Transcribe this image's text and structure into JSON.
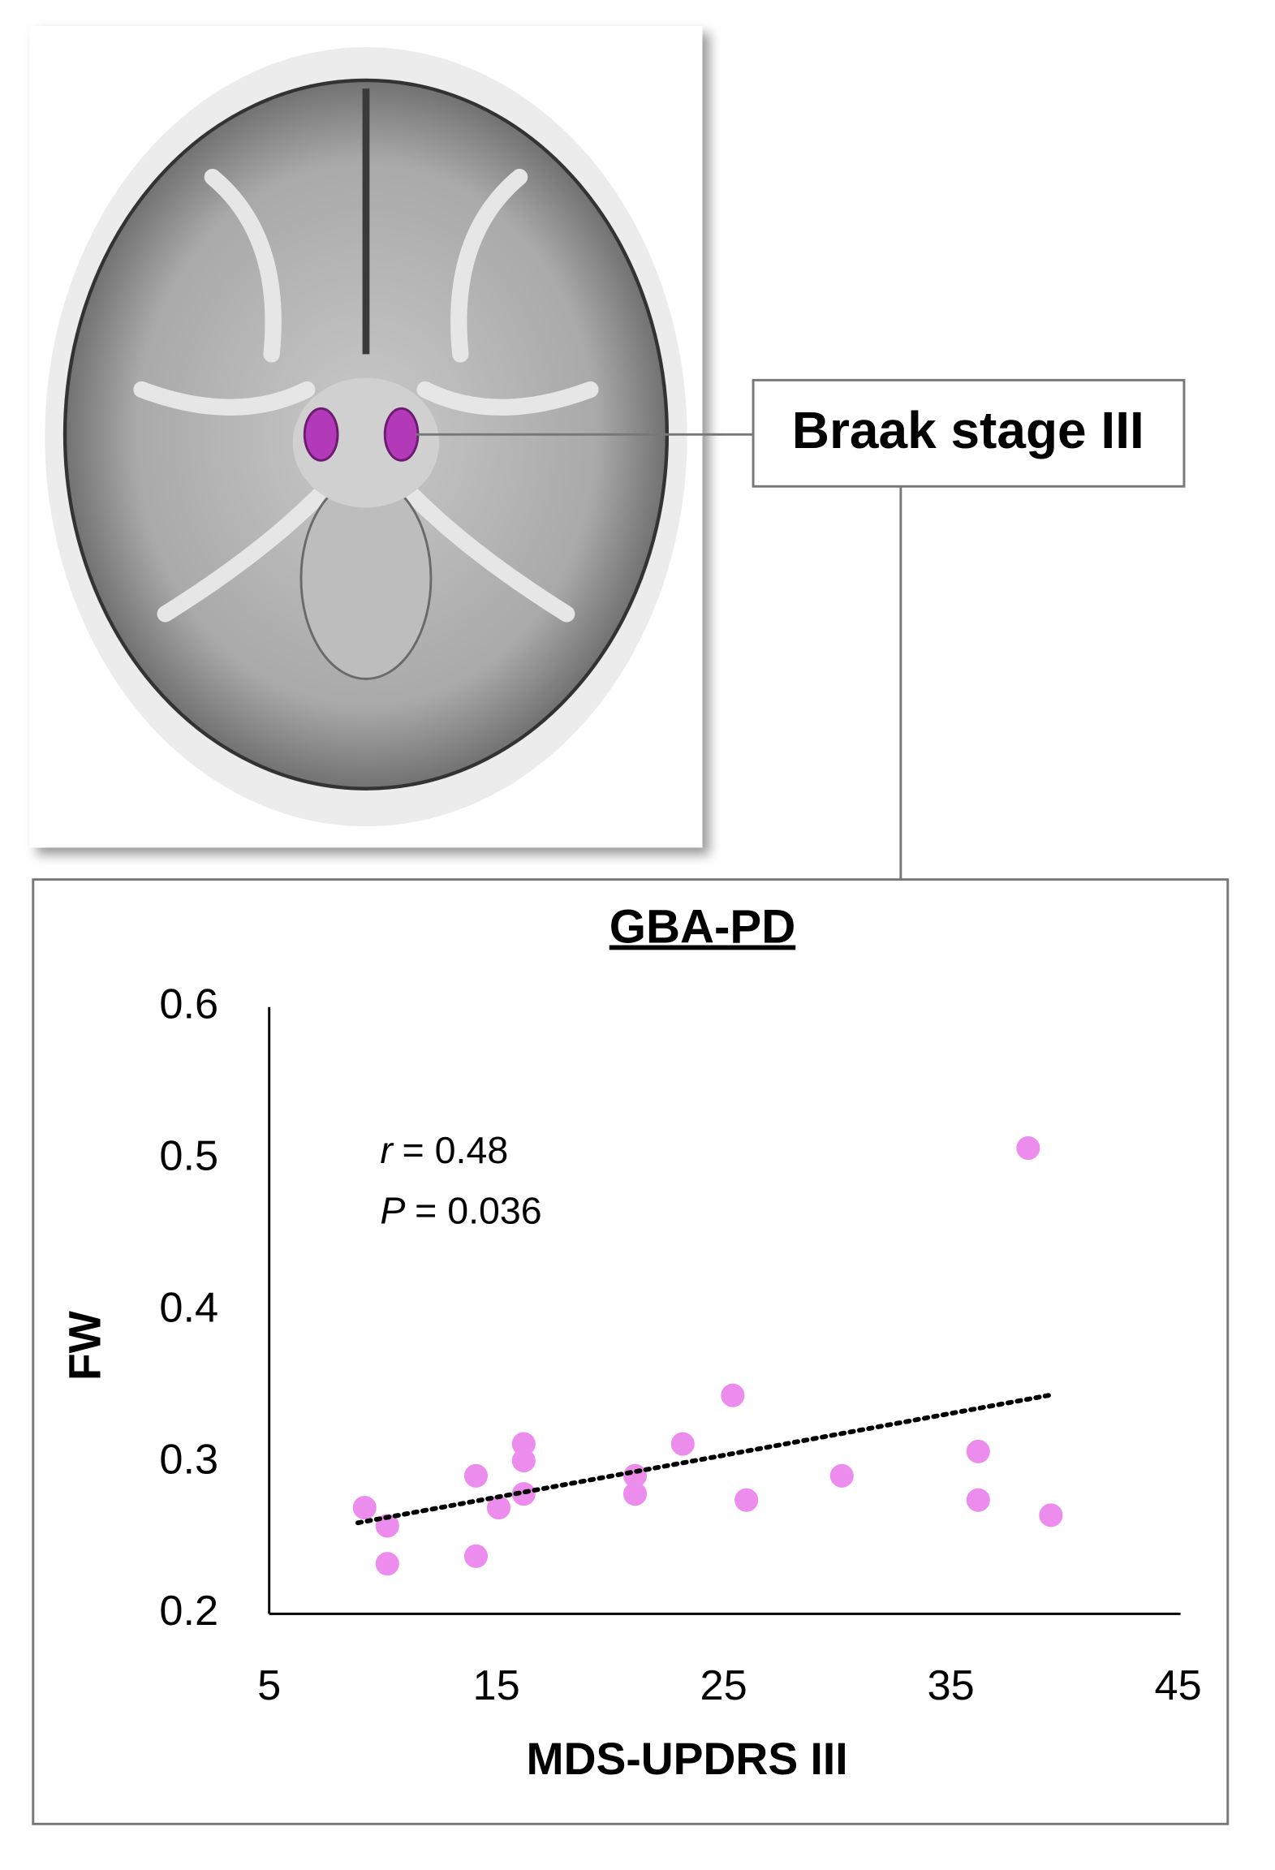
{
  "region_label": "Braak stage III",
  "chart_data": {
    "type": "scatter",
    "title": "GBA-PD",
    "x_label": "MDS-UPDRS III",
    "y_label": "FW",
    "annotations": [
      {
        "symbol": "r",
        "text": "= 0.48"
      },
      {
        "symbol": "P",
        "text": "= 0.036"
      }
    ],
    "color": "#ec8cec",
    "x": [
      9.2,
      10.2,
      10.2,
      14.1,
      14.1,
      15.1,
      16.2,
      16.2,
      16.2,
      21.1,
      21.1,
      23.2,
      25.4,
      26.0,
      30.2,
      36.2,
      36.2,
      38.4,
      39.4
    ],
    "values": [
      0.27,
      0.258,
      0.233,
      0.291,
      0.238,
      0.27,
      0.312,
      0.301,
      0.279,
      0.291,
      0.279,
      0.312,
      0.344,
      0.275,
      0.291,
      0.307,
      0.275,
      0.507,
      0.265
    ],
    "trendline": {
      "x": [
        8.9,
        39.3
      ],
      "y": [
        0.26,
        0.344
      ]
    },
    "xlim": [
      5,
      45
    ],
    "xticks": [
      5,
      15,
      25,
      35,
      45
    ],
    "ylim": [
      0.2,
      0.6
    ],
    "yticks": [
      0.2,
      0.3,
      0.4,
      0.5,
      0.6
    ],
    "grid": false
  }
}
